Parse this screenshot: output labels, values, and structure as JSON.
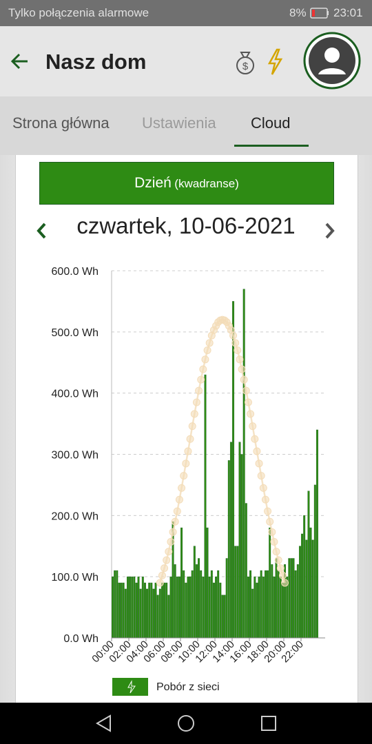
{
  "status_bar": {
    "carrier": "Tylko połączenia alarmowe",
    "battery": "8%",
    "time": "23:01"
  },
  "header": {
    "title": "Nasz dom"
  },
  "tabs": [
    "Strona główna",
    "Ustawienia",
    "Cloud"
  ],
  "period_button": {
    "label": "Dzień",
    "sublabel": "(kwadranse)"
  },
  "date": "czwartek, 10-06-2021",
  "chart_data": {
    "type": "bar",
    "categories": [
      "00:00",
      null,
      null,
      null,
      null,
      null,
      null,
      null,
      "02:00",
      null,
      null,
      null,
      null,
      null,
      null,
      null,
      "04:00",
      null,
      null,
      null,
      null,
      null,
      null,
      null,
      "06:00",
      null,
      null,
      null,
      null,
      null,
      null,
      null,
      "08:00",
      null,
      null,
      null,
      null,
      null,
      null,
      null,
      "10:00",
      null,
      null,
      null,
      null,
      null,
      null,
      null,
      "12:00",
      null,
      null,
      null,
      null,
      null,
      null,
      null,
      "14:00",
      null,
      null,
      null,
      null,
      null,
      null,
      null,
      "16:00",
      null,
      null,
      null,
      null,
      null,
      null,
      null,
      "18:00",
      null,
      null,
      null,
      null,
      null,
      null,
      null,
      "20:00",
      null,
      null,
      null,
      null,
      null,
      null,
      null,
      "22:00",
      null,
      null,
      null,
      null,
      null,
      null,
      null
    ],
    "series": [
      {
        "name": "Pobór z sieci",
        "color": "#2e8b14",
        "values": [
          100,
          110,
          110,
          90,
          90,
          90,
          80,
          100,
          100,
          100,
          100,
          90,
          100,
          80,
          100,
          90,
          80,
          90,
          90,
          80,
          90,
          70,
          80,
          90,
          90,
          90,
          70,
          100,
          190,
          120,
          100,
          100,
          180,
          110,
          90,
          100,
          100,
          110,
          150,
          120,
          130,
          110,
          100,
          430,
          180,
          100,
          110,
          90,
          100,
          110,
          90,
          70,
          70,
          130,
          290,
          320,
          550,
          150,
          150,
          320,
          300,
          570,
          220,
          100,
          110,
          80,
          100,
          90,
          100,
          110,
          100,
          110,
          110,
          180,
          120,
          100,
          130,
          110,
          100,
          90,
          120,
          100,
          130,
          130,
          130,
          110,
          120,
          150,
          170,
          200,
          160,
          240,
          180,
          160,
          250,
          340
        ]
      },
      {
        "type": "line",
        "color": "#f3dcb8",
        "values": [
          null,
          null,
          null,
          null,
          null,
          null,
          null,
          null,
          null,
          null,
          null,
          null,
          null,
          null,
          null,
          null,
          null,
          null,
          null,
          null,
          null,
          null,
          90,
          102,
          114,
          127,
          141,
          157,
          173,
          190,
          207,
          226,
          245,
          265,
          285,
          305,
          325,
          346,
          366,
          385,
          404,
          422,
          439,
          455,
          470,
          482,
          494,
          503,
          510,
          516,
          519,
          520,
          519,
          516,
          510,
          503,
          494,
          482,
          470,
          455,
          439,
          422,
          404,
          385,
          366,
          346,
          325,
          305,
          285,
          265,
          245,
          226,
          207,
          190,
          173,
          157,
          141,
          127,
          114,
          102,
          90,
          null,
          null,
          null,
          null,
          null,
          null,
          null,
          null,
          null,
          null,
          null,
          null,
          null,
          null,
          null
        ]
      }
    ],
    "ylim": [
      0,
      600
    ],
    "yticks": [
      {
        "value": 0,
        "label": "0.0 Wh"
      },
      {
        "value": 100,
        "label": "100.0 Wh"
      },
      {
        "value": 200,
        "label": "200.0 Wh"
      },
      {
        "value": 300,
        "label": "300.0 Wh"
      },
      {
        "value": 400,
        "label": "400.0 Wh"
      },
      {
        "value": 500,
        "label": "500.0 Wh"
      },
      {
        "value": 600,
        "label": "600.0 Wh"
      }
    ],
    "grid": true
  }
}
